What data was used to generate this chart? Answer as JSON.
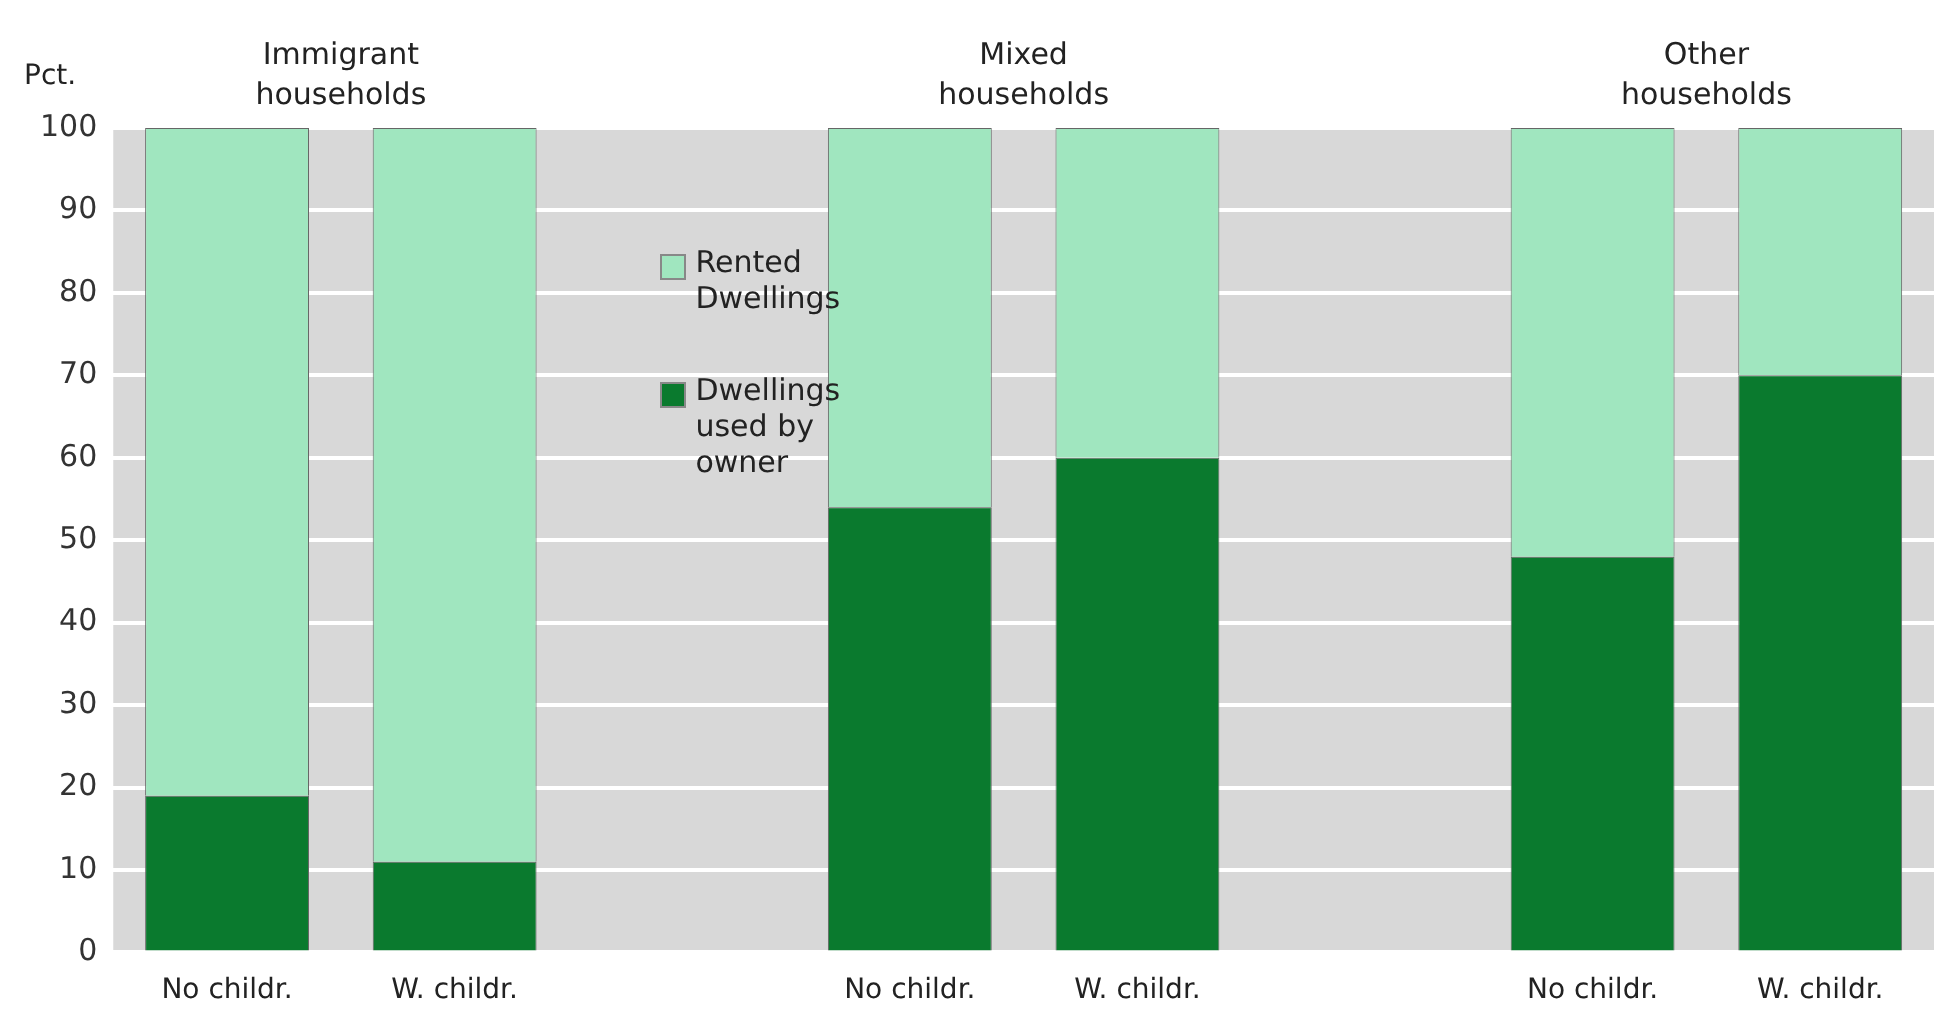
{
  "chart_data": {
    "type": "bar",
    "stacked": true,
    "ylabel": "Pct.",
    "categories": [
      "No childr.",
      "W. childr.",
      null,
      "No childr.",
      "W. childr.",
      null,
      "No childr.",
      "W. childr."
    ],
    "series": [
      {
        "name": "Dwellings used by owner",
        "color": "#0a7a2e",
        "values": [
          19,
          11,
          null,
          54,
          60,
          null,
          48,
          70
        ]
      },
      {
        "name": "Rented Dwellings",
        "color": "#a0e6bf",
        "values": [
          81,
          89,
          null,
          46,
          40,
          null,
          52,
          30
        ]
      }
    ],
    "ylim": [
      0,
      100
    ],
    "yticks": [
      0,
      10,
      20,
      30,
      40,
      50,
      60,
      70,
      80,
      90,
      100
    ],
    "grid": "y",
    "legend": "top left",
    "annotations": [
      "Immigrant households",
      "Mixed households",
      "Other households"
    ]
  }
}
